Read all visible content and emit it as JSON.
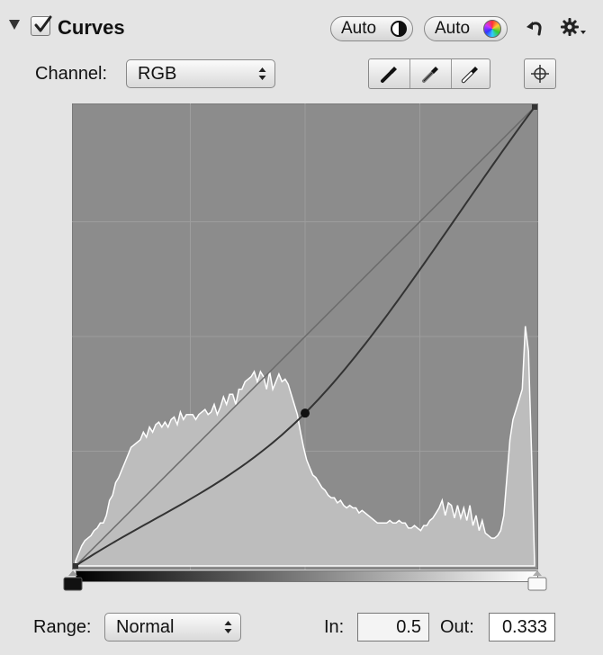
{
  "header": {
    "title": "Curves",
    "enabled": true,
    "auto_contrast_label": "Auto",
    "auto_contrast_icon": "half-circle-contrast-icon",
    "auto_color_label": "Auto",
    "auto_color_icon": "color-wheel-icon",
    "reset_icon": "undo-arrow-icon",
    "actions_icon": "gear-menu-icon"
  },
  "channel": {
    "label": "Channel:",
    "value": "RGB",
    "eyedroppers": [
      "black-point-eyedropper-icon",
      "gray-point-eyedropper-icon",
      "white-point-eyedropper-icon"
    ],
    "target_icon": "crosshair-target-icon"
  },
  "curve": {
    "control_points": [
      [
        0,
        0
      ],
      [
        0.5,
        0.333
      ],
      [
        1,
        1
      ]
    ],
    "histogram": [
      0.02,
      0.05,
      0.08,
      0.1,
      0.11,
      0.12,
      0.14,
      0.15,
      0.17,
      0.17,
      0.2,
      0.26,
      0.28,
      0.33,
      0.35,
      0.38,
      0.41,
      0.44,
      0.47,
      0.48,
      0.49,
      0.5,
      0.53,
      0.51,
      0.55,
      0.53,
      0.56,
      0.57,
      0.55,
      0.57,
      0.55,
      0.58,
      0.59,
      0.56,
      0.61,
      0.58,
      0.6,
      0.6,
      0.6,
      0.58,
      0.6,
      0.61,
      0.62,
      0.6,
      0.61,
      0.64,
      0.6,
      0.63,
      0.67,
      0.64,
      0.68,
      0.68,
      0.64,
      0.7,
      0.7,
      0.73,
      0.74,
      0.75,
      0.77,
      0.73,
      0.77,
      0.75,
      0.7,
      0.77,
      0.7,
      0.73,
      0.76,
      0.73,
      0.74,
      0.72,
      0.68,
      0.64,
      0.6,
      0.53,
      0.47,
      0.42,
      0.39,
      0.36,
      0.35,
      0.33,
      0.31,
      0.3,
      0.28,
      0.27,
      0.27,
      0.25,
      0.26,
      0.24,
      0.23,
      0.24,
      0.23,
      0.23,
      0.21,
      0.22,
      0.21,
      0.2,
      0.19,
      0.18,
      0.17,
      0.17,
      0.17,
      0.17,
      0.18,
      0.17,
      0.17,
      0.18,
      0.17,
      0.17,
      0.15,
      0.15,
      0.16,
      0.15,
      0.14,
      0.16,
      0.16,
      0.18,
      0.19,
      0.21,
      0.23,
      0.26,
      0.2,
      0.25,
      0.24,
      0.19,
      0.24,
      0.19,
      0.23,
      0.18,
      0.24,
      0.16,
      0.2,
      0.14,
      0.18,
      0.13,
      0.12,
      0.11,
      0.11,
      0.12,
      0.14,
      0.2,
      0.35,
      0.5,
      0.58,
      0.62,
      0.66,
      0.7,
      0.95,
      0.85,
      0.45,
      0.01
    ]
  },
  "range": {
    "label": "Range:",
    "value": "Normal"
  },
  "in": {
    "label": "In:",
    "value": "0.5"
  },
  "out": {
    "label": "Out:",
    "value": "0.333"
  }
}
